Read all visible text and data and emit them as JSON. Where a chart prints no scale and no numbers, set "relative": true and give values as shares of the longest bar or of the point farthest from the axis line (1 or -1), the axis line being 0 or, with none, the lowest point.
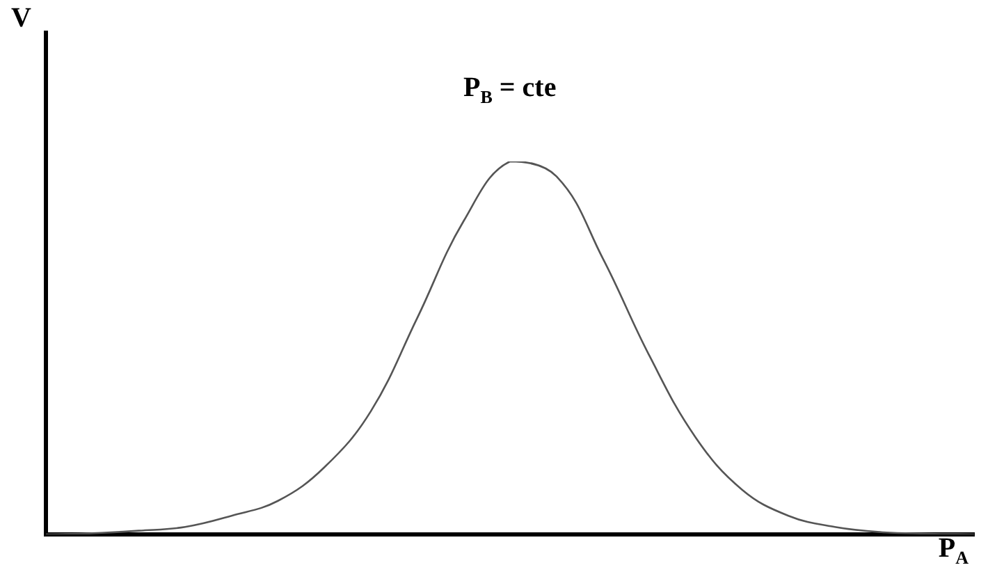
{
  "chart_data": {
    "type": "line",
    "relative": true,
    "xlabel": "P$_{A}$",
    "ylabel": "V",
    "annotations": [
      "P$_{B}$ = cte"
    ],
    "categories": [
      null,
      null,
      null,
      null,
      null,
      null,
      null,
      null,
      null,
      null,
      null,
      null,
      null,
      null,
      null,
      null,
      null,
      null,
      null,
      null,
      null
    ],
    "series": [
      {
        "color": "#555555",
        "values": [
          0,
          0.003,
          0.01,
          0.02,
          0.05,
          0.09,
          0.18,
          0.33,
          0.58,
          0.84,
          1,
          0.96,
          0.74,
          0.48,
          0.26,
          0.12,
          0.05,
          0.02,
          0.006,
          0.002,
          0
        ]
      }
    ],
    "grid": false,
    "legend": false,
    "tick_labels": false,
    "marker": "none",
    "line_style": "solid"
  }
}
